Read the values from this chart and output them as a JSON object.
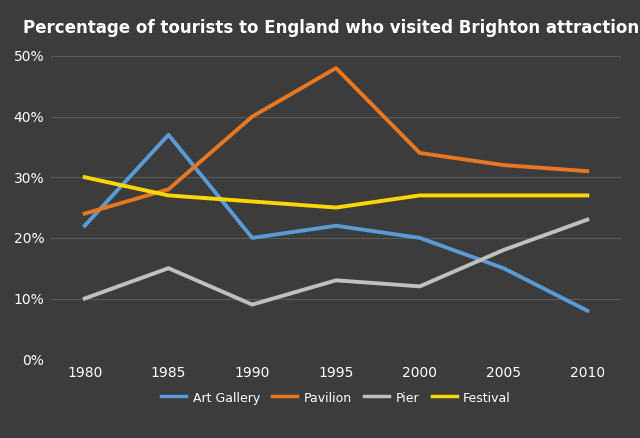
{
  "title": "Percentage of tourists to England who visited Brighton attractions",
  "years": [
    1980,
    1985,
    1990,
    1995,
    2000,
    2005,
    2010
  ],
  "series": {
    "Art Gallery": {
      "values": [
        22,
        37,
        20,
        22,
        20,
        15,
        8
      ],
      "color": "#5B9BD5",
      "marker": "none"
    },
    "Pavilion": {
      "values": [
        24,
        28,
        40,
        48,
        34,
        32,
        31
      ],
      "color": "#E87722",
      "marker": "none"
    },
    "Pier": {
      "values": [
        10,
        15,
        9,
        13,
        12,
        18,
        23
      ],
      "color": "#C0C0C0",
      "marker": "none"
    },
    "Festival": {
      "values": [
        30,
        27,
        26,
        25,
        27,
        27,
        27
      ],
      "color": "#FFD700",
      "marker": "none"
    }
  },
  "ylim": [
    0,
    52
  ],
  "yticks": [
    0,
    10,
    20,
    30,
    40,
    50
  ],
  "ytick_labels": [
    "0%",
    "10%",
    "20%",
    "30%",
    "40%",
    "50%"
  ],
  "xlim": [
    1978,
    2012
  ],
  "background_color": "#3C3C3C",
  "plot_bg_color": "#3C3C3C",
  "grid_color": "#5a5a5a",
  "text_color": "#ffffff",
  "title_fontsize": 12,
  "axis_fontsize": 10,
  "legend_fontsize": 9,
  "line_width": 2.8
}
